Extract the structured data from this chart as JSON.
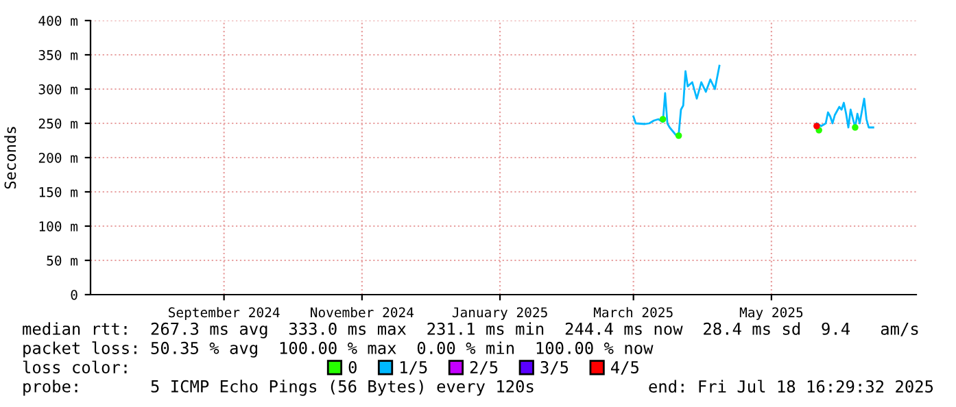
{
  "chart_data": {
    "type": "line",
    "ylabel": "Seconds",
    "xlim": [
      "2024-07-18",
      "2025-07-18"
    ],
    "xticks": [
      {
        "value": "2024-09-15",
        "label": "September 2024"
      },
      {
        "value": "2024-11-15",
        "label": "November 2024"
      },
      {
        "value": "2025-01-15",
        "label": "January 2025"
      },
      {
        "value": "2025-03-15",
        "label": "March 2025"
      },
      {
        "value": "2025-05-15",
        "label": "May 2025"
      }
    ],
    "ylim": [
      0,
      400
    ],
    "yticks": [
      0,
      {
        "value": 50,
        "label": "50 m"
      },
      {
        "value": 100,
        "label": "100 m"
      },
      {
        "value": 150,
        "label": "150 m"
      },
      {
        "value": 200,
        "label": "200 m"
      },
      {
        "value": 250,
        "label": "250 m"
      },
      {
        "value": 300,
        "label": "300 m"
      },
      {
        "value": 350,
        "label": "350 m"
      },
      {
        "value": 400,
        "label": "400 m"
      }
    ],
    "grid": true,
    "legend": "bottom",
    "marker": "none",
    "line_style": "solid",
    "series": [
      {
        "name": "0",
        "type": "scatter",
        "color": "#26ff00",
        "x": [
          "2025-03-28",
          "2025-04-04",
          "2025-06-05",
          "2025-06-21"
        ],
        "values": [
          256,
          232,
          240,
          244
        ]
      },
      {
        "name": "1/5",
        "color": "#00b8ff",
        "x": [
          "2025-03-15",
          "2025-03-16",
          "2025-03-20",
          "2025-03-22",
          "2025-03-24",
          "2025-03-26",
          "2025-03-28",
          "2025-03-29",
          "2025-03-30",
          "2025-03-31",
          "2025-04-02",
          "2025-04-03",
          "2025-04-04",
          "2025-04-05",
          "2025-04-06",
          "2025-04-07",
          "2025-04-08",
          "2025-04-10",
          "2025-04-12",
          "2025-04-14",
          "2025-04-16",
          "2025-04-18",
          "2025-04-20",
          "2025-04-22",
          "2025-05-20",
          "2025-06-04",
          "2025-06-06",
          "2025-06-08",
          "2025-06-09",
          "2025-06-10",
          "2025-06-11",
          "2025-06-12",
          "2025-06-14",
          "2025-06-15",
          "2025-06-16",
          "2025-06-17",
          "2025-06-18",
          "2025-06-19",
          "2025-06-21",
          "2025-06-22",
          "2025-06-23",
          "2025-06-25",
          "2025-06-26",
          "2025-06-27",
          "2025-06-29"
        ],
        "values": [
          260,
          250,
          249,
          250,
          254,
          256,
          252,
          294,
          250,
          244,
          236,
          232,
          234,
          270,
          276,
          326,
          304,
          310,
          286,
          310,
          296,
          314,
          300,
          334,
          null,
          250,
          246,
          250,
          266,
          260,
          250,
          262,
          274,
          270,
          280,
          264,
          244,
          270,
          244,
          264,
          250,
          286,
          256,
          244,
          244
        ]
      },
      {
        "name": "2/5",
        "type": "scatter",
        "color": "#c400ff"
      },
      {
        "name": "3/5",
        "type": "scatter",
        "color": "#5a00ff"
      },
      {
        "name": "4/5",
        "type": "scatter",
        "color": "#ff0000",
        "x": [
          "2025-06-04"
        ],
        "values": [
          246
        ]
      }
    ],
    "annotations": [
      "median rtt:  267.3 ms avg  333.0 ms max  231.1 ms min  244.4 ms now  28.4 ms sd  9.4   am/s",
      "packet loss: 50.35 % avg  100.00 % max  0.00 % min  100.00 % now",
      "loss color:",
      "probe:       5 ICMP Echo Pings (56 Bytes) every 120s",
      "end: Fri Jul 18 16:29:32 2025"
    ]
  }
}
